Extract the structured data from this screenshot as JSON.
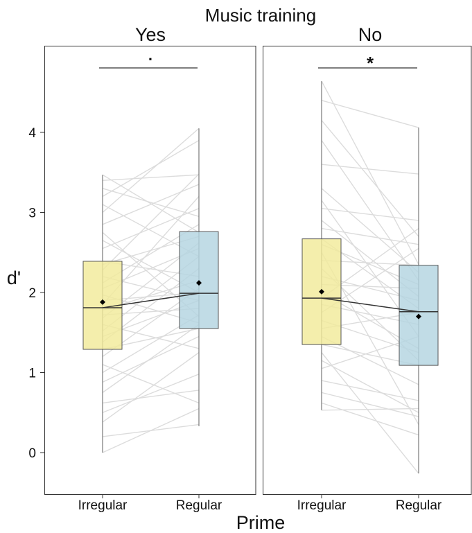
{
  "chart_data": {
    "type": "box",
    "title": "Music training",
    "xlabel": "Prime",
    "ylabel": "d'",
    "ylim": [
      -0.5,
      5.0
    ],
    "yticks": [
      0,
      1,
      2,
      3,
      4
    ],
    "ytick_labels": [
      "0",
      "1",
      "2",
      "3",
      "4"
    ],
    "categories": [
      "Irregular",
      "Regular"
    ],
    "colors": {
      "Irregular": "#f2ea9a",
      "Regular": "#b3d4e1",
      "paired_lines": "#dcdcdc",
      "box_border": "#555555",
      "mean_marker": "#000000"
    },
    "grid": false,
    "facets": [
      {
        "label": "Yes",
        "significance": "·",
        "boxes": [
          {
            "category": "Irregular",
            "q1": 1.29,
            "median": 1.81,
            "q3": 2.39,
            "whisker_low": 0.0,
            "whisker_high": 3.47,
            "mean": 1.88
          },
          {
            "category": "Regular",
            "q1": 1.55,
            "median": 1.99,
            "q3": 2.76,
            "whisker_low": 0.33,
            "whisker_high": 4.05,
            "mean": 2.12
          }
        ],
        "pairs": [
          [
            0.0,
            0.55
          ],
          [
            0.2,
            0.35
          ],
          [
            0.38,
            1.25
          ],
          [
            0.5,
            0.98
          ],
          [
            0.62,
            0.78
          ],
          [
            0.75,
            1.6
          ],
          [
            0.88,
            1.45
          ],
          [
            1.0,
            1.72
          ],
          [
            1.1,
            0.62
          ],
          [
            1.2,
            2.05
          ],
          [
            1.29,
            1.55
          ],
          [
            1.38,
            2.3
          ],
          [
            1.45,
            1.9
          ],
          [
            1.52,
            2.45
          ],
          [
            1.6,
            1.3
          ],
          [
            1.68,
            2.62
          ],
          [
            1.72,
            1.8
          ],
          [
            1.78,
            2.15
          ],
          [
            1.85,
            3.2
          ],
          [
            1.9,
            2.0
          ],
          [
            1.97,
            1.62
          ],
          [
            2.05,
            2.55
          ],
          [
            2.12,
            2.85
          ],
          [
            2.2,
            1.9
          ],
          [
            2.28,
            3.48
          ],
          [
            2.35,
            2.7
          ],
          [
            2.39,
            2.2
          ],
          [
            2.55,
            3.05
          ],
          [
            2.65,
            2.0
          ],
          [
            2.75,
            1.7
          ],
          [
            2.85,
            3.35
          ],
          [
            3.0,
            4.05
          ],
          [
            3.1,
            2.45
          ],
          [
            3.2,
            3.9
          ],
          [
            3.3,
            2.95
          ],
          [
            3.4,
            3.47
          ],
          [
            3.47,
            2.75
          ]
        ]
      },
      {
        "label": "No",
        "significance": "*",
        "boxes": [
          {
            "category": "Irregular",
            "q1": 1.35,
            "median": 1.93,
            "q3": 2.67,
            "whisker_low": 0.53,
            "whisker_high": 4.64,
            "mean": 2.01
          },
          {
            "category": "Regular",
            "q1": 1.09,
            "median": 1.76,
            "q3": 2.34,
            "whisker_low": -0.26,
            "whisker_high": 4.06,
            "mean": 1.7
          }
        ],
        "pairs": [
          [
            0.53,
            0.55
          ],
          [
            0.62,
            0.22
          ],
          [
            0.75,
            0.45
          ],
          [
            0.9,
            0.65
          ],
          [
            1.05,
            1.45
          ],
          [
            1.15,
            0.5
          ],
          [
            1.25,
            -0.26
          ],
          [
            1.35,
            1.09
          ],
          [
            1.45,
            0.85
          ],
          [
            1.55,
            1.75
          ],
          [
            1.65,
            1.25
          ],
          [
            1.75,
            2.55
          ],
          [
            1.85,
            1.6
          ],
          [
            1.93,
            2.8
          ],
          [
            2.0,
            1.3
          ],
          [
            2.1,
            2.05
          ],
          [
            2.2,
            1.9
          ],
          [
            2.3,
            1.15
          ],
          [
            2.4,
            2.34
          ],
          [
            2.5,
            0.35
          ],
          [
            2.6,
            2.1
          ],
          [
            2.67,
            1.8
          ],
          [
            2.8,
            2.6
          ],
          [
            2.9,
            1.95
          ],
          [
            3.05,
            2.9
          ],
          [
            3.15,
            1.45
          ],
          [
            3.3,
            2.25
          ],
          [
            3.6,
            3.48
          ],
          [
            3.9,
            2.15
          ],
          [
            4.15,
            2.7
          ],
          [
            4.4,
            4.06
          ],
          [
            4.64,
            2.35
          ]
        ]
      }
    ]
  }
}
